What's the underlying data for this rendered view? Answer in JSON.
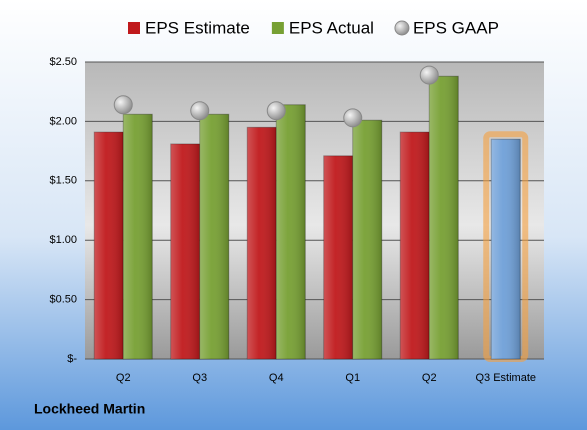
{
  "chart_data": {
    "type": "bar",
    "categories": [
      "Q2",
      "Q3",
      "Q4",
      "Q1",
      "Q2",
      "Q3 Estimate"
    ],
    "series": [
      {
        "name": "EPS Estimate",
        "color": "#c0191c",
        "values": [
          1.91,
          1.81,
          1.95,
          1.71,
          1.91,
          1.85
        ]
      },
      {
        "name": "EPS Actual",
        "color": "#77a033",
        "values": [
          2.06,
          2.06,
          2.14,
          2.01,
          2.38,
          null
        ]
      },
      {
        "name": "EPS GAAP",
        "color": "#a0a0a0",
        "values": [
          2.14,
          2.09,
          2.09,
          2.03,
          2.39,
          null
        ],
        "marker": "circle"
      }
    ],
    "highlight_color": "#6fa0d8",
    "ylim": [
      0,
      2.5
    ],
    "yticks": [
      {
        "value": 0,
        "label": "$-"
      },
      {
        "value": 0.5,
        "label": "$0.50"
      },
      {
        "value": 1,
        "label": "$1.00"
      },
      {
        "value": 1.5,
        "label": "$1.50"
      },
      {
        "value": 2,
        "label": "$2.00"
      },
      {
        "value": 2.5,
        "label": "$2.50"
      }
    ],
    "grid": true,
    "footer": "Lockheed Martin"
  }
}
